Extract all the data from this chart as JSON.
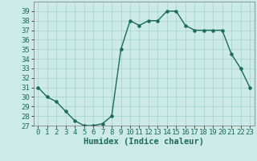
{
  "x": [
    0,
    1,
    2,
    3,
    4,
    5,
    6,
    7,
    8,
    9,
    10,
    11,
    12,
    13,
    14,
    15,
    16,
    17,
    18,
    19,
    20,
    21,
    22,
    23
  ],
  "y": [
    31,
    30,
    29.5,
    28.5,
    27.5,
    27,
    27,
    27.2,
    28,
    35,
    38,
    37.5,
    38,
    38,
    39,
    39,
    37.5,
    37,
    37,
    37,
    37,
    34.5,
    33,
    31
  ],
  "line_color": "#1a6b5a",
  "marker": "o",
  "marker_size": 2.2,
  "bg_color": "#cceae7",
  "grid_color": "#aad4d0",
  "xlabel": "Humidex (Indice chaleur)",
  "ylim": [
    27,
    40
  ],
  "xlim": [
    -0.5,
    23.5
  ],
  "yticks": [
    27,
    28,
    29,
    30,
    31,
    32,
    33,
    34,
    35,
    36,
    37,
    38,
    39
  ],
  "xticks": [
    0,
    1,
    2,
    3,
    4,
    5,
    6,
    7,
    8,
    9,
    10,
    11,
    12,
    13,
    14,
    15,
    16,
    17,
    18,
    19,
    20,
    21,
    22,
    23
  ],
  "xlabel_fontsize": 7.5,
  "tick_fontsize": 6.5,
  "linewidth": 1.0
}
